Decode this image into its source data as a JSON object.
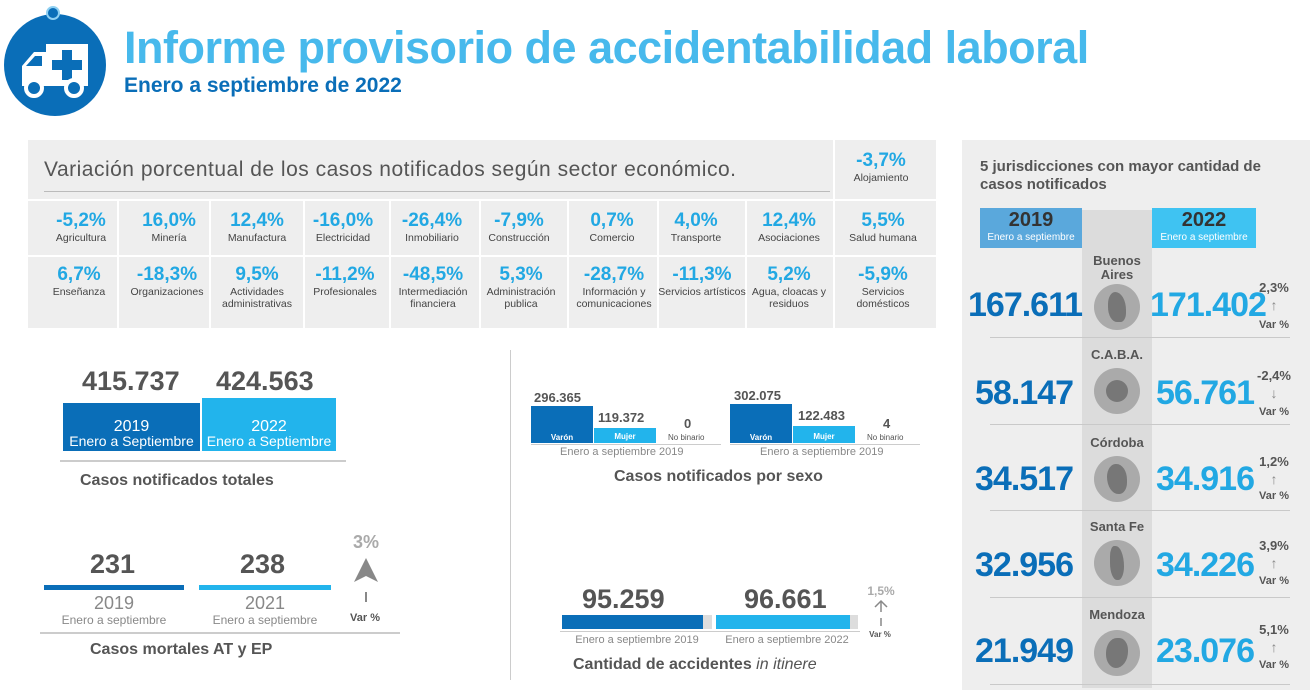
{
  "header": {
    "title": "Informe provisorio de accidentabilidad laboral",
    "subtitle": "Enero a septiembre de 2022",
    "logo_icon": "ambulance-icon"
  },
  "sectors": {
    "title": "Variación porcentual de los casos notificados según sector económico.",
    "items": [
      {
        "value": "-3,7%",
        "label": "Alojamiento"
      },
      {
        "value": "-5,2%",
        "label": "Agricultura"
      },
      {
        "value": "16,0%",
        "label": "Minería"
      },
      {
        "value": "12,4%",
        "label": "Manufactura"
      },
      {
        "value": "-16,0%",
        "label": "Electricidad"
      },
      {
        "value": "-26,4%",
        "label": "Inmobiliario"
      },
      {
        "value": "-7,9%",
        "label": "Construcción"
      },
      {
        "value": "0,7%",
        "label": "Comercio"
      },
      {
        "value": "4,0%",
        "label": "Transporte"
      },
      {
        "value": "12,4%",
        "label": "Asociaciones"
      },
      {
        "value": "5,5%",
        "label": "Salud humana"
      },
      {
        "value": "6,7%",
        "label": "Enseñanza"
      },
      {
        "value": "-18,3%",
        "label": "Organizaciones"
      },
      {
        "value": "9,5%",
        "label": "Actividades administrativas"
      },
      {
        "value": "-11,2%",
        "label": "Profesionales"
      },
      {
        "value": "-48,5%",
        "label": "Intermediación financiera"
      },
      {
        "value": "5,3%",
        "label": "Administración publica"
      },
      {
        "value": "-28,7%",
        "label": "Información y comunicaciones"
      },
      {
        "value": "-11,3%",
        "label": "Servicios artísticos"
      },
      {
        "value": "5,2%",
        "label": "Agua, cloacas y residuos"
      },
      {
        "value": "-5,9%",
        "label": "Servicios domésticos"
      }
    ]
  },
  "totals": {
    "value_2019": "415.737",
    "value_2022": "424.563",
    "year_2019": "2019",
    "year_2022": "2022",
    "period": "Enero a Septiembre",
    "label": "Casos notificados totales"
  },
  "mortal": {
    "value_2019": "231",
    "value_2021": "238",
    "year_2019": "2019",
    "year_2021": "2021",
    "period": "Enero a septiembre",
    "var_value": "3%",
    "var_label": "Var %",
    "label": "Casos mortales AT y EP"
  },
  "sex": {
    "label": "Casos notificados por sexo",
    "caption": "Enero a septiembre 2019",
    "groups": [
      {
        "varon": "296.365",
        "mujer": "119.372",
        "no_binario": "0"
      },
      {
        "varon": "302.075",
        "mujer": "122.483",
        "no_binario": "4"
      }
    ],
    "varon_label": "Varón",
    "mujer_label": "Mujer",
    "nobinario_label": "No binario"
  },
  "itinere": {
    "value_2019": "95.259",
    "value_2022": "96.661",
    "caption_2019": "Enero a septiembre 2019",
    "caption_2022": "Enero a septiembre 2022",
    "var_value": "1,5%",
    "var_label": "Var %",
    "label_main": "Cantidad de accidentes ",
    "label_italic": "in itinere"
  },
  "jurisdictions": {
    "title": "5 jurisdicciones con mayor cantidad de casos notificados",
    "year_2019": "2019",
    "year_2022": "2022",
    "period": "Enero a septiembre",
    "var_label": "Var %",
    "rows": [
      {
        "name": "Buenos Aires",
        "v2019": "167.611",
        "v2022": "171.402",
        "pct": "2,3%",
        "arrow": "↑"
      },
      {
        "name": "C.A.B.A.",
        "v2019": "58.147",
        "v2022": "56.761",
        "pct": "-2,4%",
        "arrow": "↓"
      },
      {
        "name": "Córdoba",
        "v2019": "34.517",
        "v2022": "34.916",
        "pct": "1,2%",
        "arrow": "↑"
      },
      {
        "name": "Santa Fe",
        "v2019": "32.956",
        "v2022": "34.226",
        "pct": "3,9%",
        "arrow": "↑"
      },
      {
        "name": "Mendoza",
        "v2019": "21.949",
        "v2022": "23.076",
        "pct": "5,1%",
        "arrow": "↑"
      }
    ],
    "colors": {
      "y2019": "#0a6eb8",
      "y2022": "#22a8e3",
      "header_2019": "#5aa8dc",
      "header_2022": "#3fc3f2"
    }
  }
}
